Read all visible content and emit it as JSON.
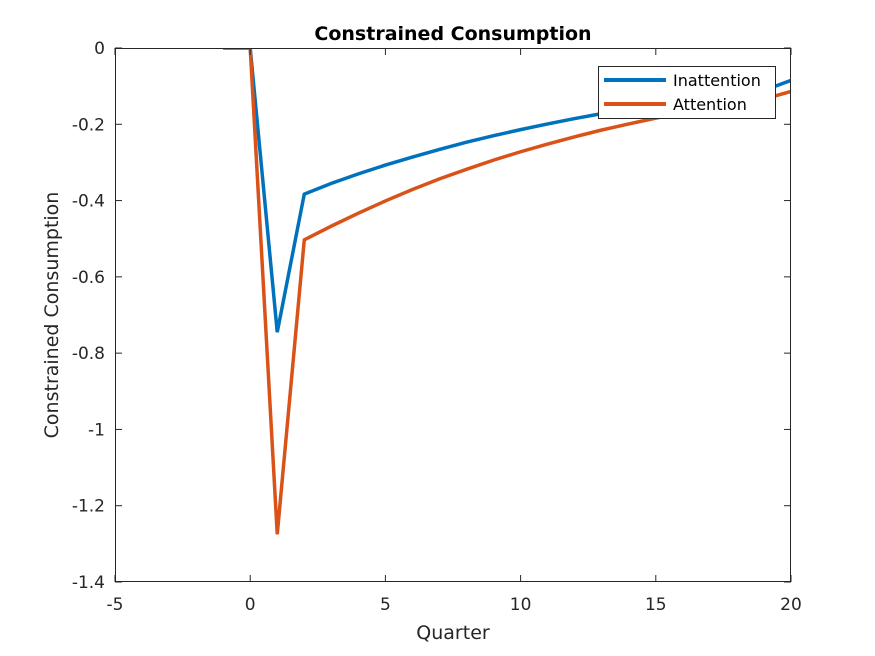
{
  "chart_data": {
    "type": "line",
    "title": "Constrained Consumption",
    "xlabel": "Quarter",
    "ylabel": "Constrained Consumption",
    "xlim": [
      -5,
      20
    ],
    "ylim": [
      -1.4,
      0
    ],
    "xticks": [
      -5,
      0,
      5,
      10,
      15,
      20
    ],
    "xtick_labels": [
      "-5",
      "0",
      "5",
      "10",
      "15",
      "20"
    ],
    "yticks": [
      0,
      -0.2,
      -0.4,
      -0.6,
      -0.8,
      -1,
      -1.2,
      -1.4
    ],
    "ytick_labels": [
      "0",
      "-0.2",
      "-0.4",
      "-0.6",
      "-0.8",
      "-1",
      "-1.2",
      "-1.4"
    ],
    "grid": false,
    "legend_position": "top-right",
    "series": [
      {
        "name": "Inattention",
        "color": "#0072BD",
        "x": [
          -1,
          0,
          1,
          2,
          3,
          4,
          5,
          6,
          7,
          8,
          9,
          10,
          11,
          12,
          13,
          14,
          15,
          16,
          17,
          18,
          19,
          20
        ],
        "y": [
          0,
          0,
          -0.745,
          -0.383,
          -0.355,
          -0.33,
          -0.307,
          -0.286,
          -0.266,
          -0.247,
          -0.23,
          -0.214,
          -0.199,
          -0.185,
          -0.172,
          -0.16,
          -0.149,
          -0.138,
          -0.128,
          -0.119,
          -0.111,
          -0.085
        ]
      },
      {
        "name": "Attention",
        "color": "#D95319",
        "x": [
          -1,
          0,
          1,
          2,
          3,
          4,
          5,
          6,
          7,
          8,
          9,
          10,
          11,
          12,
          13,
          14,
          15,
          16,
          17,
          18,
          19,
          20
        ],
        "y": [
          0,
          0,
          -1.275,
          -0.503,
          -0.467,
          -0.433,
          -0.401,
          -0.371,
          -0.343,
          -0.318,
          -0.294,
          -0.272,
          -0.252,
          -0.233,
          -0.215,
          -0.199,
          -0.184,
          -0.17,
          -0.157,
          -0.145,
          -0.134,
          -0.114
        ]
      }
    ]
  }
}
